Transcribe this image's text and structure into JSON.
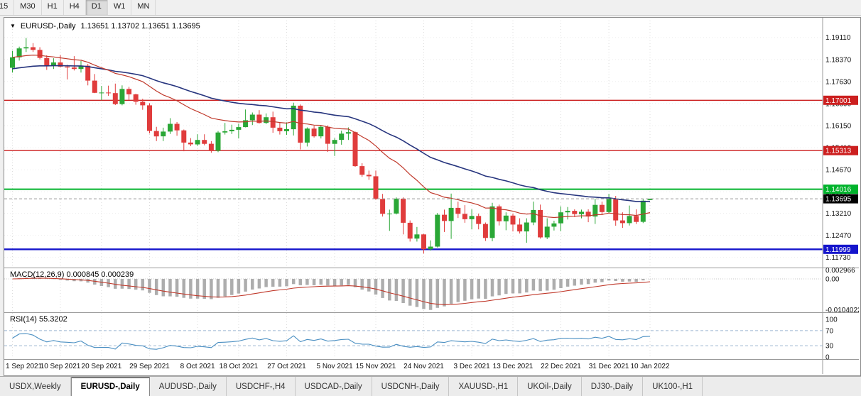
{
  "toolbar": {
    "timeframes": [
      "15",
      "M30",
      "H1",
      "H4",
      "D1",
      "W1",
      "MN"
    ],
    "active": "D1"
  },
  "chart_header": {
    "symbol": "EURUSD-,Daily",
    "ohlc": "1.13651 1.13702 1.13651 1.13695"
  },
  "indicators": {
    "macd": {
      "label": "MACD(12,26,9) 0.000845 0.000239",
      "fast": 12,
      "slow": 26,
      "signal": 9,
      "axis": [
        {
          "v": 0.002966,
          "t": "0.002966"
        },
        {
          "v": 0,
          "t": "0.00"
        },
        {
          "v": -0.0104022,
          "t": "-0.0104022"
        }
      ]
    },
    "rsi": {
      "label": "RSI(14) 55.3202",
      "period": 14,
      "levels": [
        70,
        30
      ],
      "axis": [
        {
          "v": 100,
          "t": "100"
        },
        {
          "v": 70,
          "t": "70"
        },
        {
          "v": 30,
          "t": "30"
        },
        {
          "v": 0,
          "t": "0"
        }
      ]
    },
    "ma": [
      {
        "period": 20,
        "color": "#c0392b",
        "seed_offset": 0
      },
      {
        "period": 45,
        "color": "#27357e",
        "seed_offset": -0.004
      }
    ]
  },
  "chart_data": {
    "type": "candlestick",
    "symbol": "EURUSD",
    "timeframe": "Daily",
    "current_price": "1.13695",
    "price_axis_labels": [
      "1.19110",
      "1.18370",
      "1.17630",
      "1.16890",
      "1.16150",
      "1.15410",
      "1.14670",
      "1.13930",
      "1.13210",
      "1.12470",
      "1.11730"
    ],
    "hlines": [
      {
        "price": 1.17001,
        "label": "1.17001",
        "color": "#cc1f1f",
        "width": 1.4
      },
      {
        "price": 1.15313,
        "label": "1.15313",
        "color": "#cc1f1f",
        "width": 1.4
      },
      {
        "price": 1.14016,
        "label": "1.14016",
        "color": "#00b32c",
        "width": 2
      },
      {
        "price": 1.11999,
        "label": "1.11999",
        "color": "#1515cc",
        "width": 2.4
      }
    ],
    "x_ticks": [
      {
        "label": "1 Sep 2021",
        "i": 0
      },
      {
        "label": "10 Sep 2021",
        "i": 7
      },
      {
        "label": "20 Sep 2021",
        "i": 13
      },
      {
        "label": "29 Sep 2021",
        "i": 20
      },
      {
        "label": "8 Oct 2021",
        "i": 27
      },
      {
        "label": "18 Oct 2021",
        "i": 33
      },
      {
        "label": "27 Oct 2021",
        "i": 40
      },
      {
        "label": "5 Nov 2021",
        "i": 47
      },
      {
        "label": "15 Nov 2021",
        "i": 53
      },
      {
        "label": "24 Nov 2021",
        "i": 60
      },
      {
        "label": "3 Dec 2021",
        "i": 67
      },
      {
        "label": "13 Dec 2021",
        "i": 73
      },
      {
        "label": "22 Dec 2021",
        "i": 80
      },
      {
        "label": "31 Dec 2021",
        "i": 87
      },
      {
        "label": "10 Jan 2022",
        "i": 93
      }
    ],
    "candles": [
      [
        1.1809,
        1.1866,
        1.1793,
        1.1844
      ],
      [
        1.1844,
        1.188,
        1.1833,
        1.1874
      ],
      [
        1.1874,
        1.1909,
        1.1862,
        1.1878
      ],
      [
        1.1878,
        1.1892,
        1.1862,
        1.1869
      ],
      [
        1.1869,
        1.1878,
        1.1837,
        1.1842
      ],
      [
        1.1842,
        1.1851,
        1.1802,
        1.1817
      ],
      [
        1.1817,
        1.1841,
        1.1805,
        1.1827
      ],
      [
        1.1827,
        1.1852,
        1.181,
        1.1813
      ],
      [
        1.1813,
        1.1819,
        1.177,
        1.181
      ],
      [
        1.181,
        1.1848,
        1.18,
        1.1805
      ],
      [
        1.1805,
        1.1832,
        1.1793,
        1.1816
      ],
      [
        1.1816,
        1.1822,
        1.175,
        1.1766
      ],
      [
        1.1766,
        1.1788,
        1.1724,
        1.1725
      ],
      [
        1.1725,
        1.1748,
        1.17,
        1.1726
      ],
      [
        1.1726,
        1.1749,
        1.1715,
        1.1724
      ],
      [
        1.1724,
        1.1756,
        1.1684,
        1.1687
      ],
      [
        1.1687,
        1.175,
        1.1683,
        1.1738
      ],
      [
        1.1738,
        1.1745,
        1.1701,
        1.172
      ],
      [
        1.172,
        1.1722,
        1.1685,
        1.1695
      ],
      [
        1.1695,
        1.1705,
        1.1668,
        1.1683
      ],
      [
        1.1683,
        1.169,
        1.1589,
        1.1597
      ],
      [
        1.1597,
        1.1611,
        1.1563,
        1.1579
      ],
      [
        1.1579,
        1.1608,
        1.1563,
        1.1595
      ],
      [
        1.1595,
        1.164,
        1.1587,
        1.1621
      ],
      [
        1.1621,
        1.1627,
        1.1581,
        1.1599
      ],
      [
        1.1599,
        1.1602,
        1.1529,
        1.1558
      ],
      [
        1.1558,
        1.1573,
        1.1546,
        1.1552
      ],
      [
        1.1552,
        1.1586,
        1.1547,
        1.1567
      ],
      [
        1.1567,
        1.1586,
        1.1549,
        1.1554
      ],
      [
        1.1554,
        1.1563,
        1.1524,
        1.1531
      ],
      [
        1.1531,
        1.1597,
        1.1526,
        1.1592
      ],
      [
        1.1592,
        1.1624,
        1.1585,
        1.1596
      ],
      [
        1.1596,
        1.1618,
        1.1587,
        1.1601
      ],
      [
        1.1601,
        1.1621,
        1.1572,
        1.161
      ],
      [
        1.161,
        1.1669,
        1.1609,
        1.1633
      ],
      [
        1.1633,
        1.1659,
        1.1617,
        1.1652
      ],
      [
        1.1652,
        1.1667,
        1.1622,
        1.1624
      ],
      [
        1.1624,
        1.1656,
        1.162,
        1.1643
      ],
      [
        1.1643,
        1.1662,
        1.1591,
        1.1608
      ],
      [
        1.1608,
        1.1627,
        1.1585,
        1.1596
      ],
      [
        1.1596,
        1.1626,
        1.1584,
        1.1603
      ],
      [
        1.1603,
        1.1692,
        1.1582,
        1.1682
      ],
      [
        1.1682,
        1.1686,
        1.1535,
        1.1558
      ],
      [
        1.1558,
        1.1609,
        1.1545,
        1.1605
      ],
      [
        1.1605,
        1.1614,
        1.1575,
        1.1579
      ],
      [
        1.1579,
        1.1616,
        1.1572,
        1.1611
      ],
      [
        1.1611,
        1.1616,
        1.1527,
        1.1554
      ],
      [
        1.1554,
        1.1573,
        1.1513,
        1.1567
      ],
      [
        1.1567,
        1.1598,
        1.1551,
        1.1588
      ],
      [
        1.1588,
        1.1609,
        1.1567,
        1.1593
      ],
      [
        1.1593,
        1.1595,
        1.1477,
        1.1479
      ],
      [
        1.1479,
        1.1489,
        1.1443,
        1.145
      ],
      [
        1.145,
        1.1464,
        1.1433,
        1.1445
      ],
      [
        1.1445,
        1.1464,
        1.1366,
        1.1369
      ],
      [
        1.1369,
        1.1386,
        1.131,
        1.1319
      ],
      [
        1.1319,
        1.1333,
        1.1262,
        1.132
      ],
      [
        1.132,
        1.1374,
        1.1317,
        1.137
      ],
      [
        1.137,
        1.1374,
        1.125,
        1.1289
      ],
      [
        1.1289,
        1.1297,
        1.1226,
        1.1236
      ],
      [
        1.1236,
        1.1275,
        1.1226,
        1.125
      ],
      [
        1.125,
        1.1252,
        1.1186,
        1.12
      ],
      [
        1.12,
        1.123,
        1.1196,
        1.1209
      ],
      [
        1.1209,
        1.1322,
        1.1206,
        1.1316
      ],
      [
        1.1316,
        1.1333,
        1.1258,
        1.1295
      ],
      [
        1.1295,
        1.1387,
        1.1235,
        1.1339
      ],
      [
        1.1339,
        1.136,
        1.1305,
        1.1319
      ],
      [
        1.1319,
        1.1348,
        1.1289,
        1.1301
      ],
      [
        1.1301,
        1.1334,
        1.1267,
        1.1312
      ],
      [
        1.1312,
        1.132,
        1.1267,
        1.1285
      ],
      [
        1.1285,
        1.129,
        1.1228,
        1.1238
      ],
      [
        1.1238,
        1.1356,
        1.1227,
        1.1344
      ],
      [
        1.1344,
        1.135,
        1.128,
        1.1294
      ],
      [
        1.1294,
        1.1324,
        1.1264,
        1.1313
      ],
      [
        1.1313,
        1.132,
        1.126,
        1.1283
      ],
      [
        1.1283,
        1.1304,
        1.1253,
        1.126
      ],
      [
        1.126,
        1.1304,
        1.1222,
        1.129
      ],
      [
        1.129,
        1.136,
        1.1281,
        1.1332
      ],
      [
        1.1332,
        1.135,
        1.1236,
        1.124
      ],
      [
        1.124,
        1.1304,
        1.1234,
        1.1276
      ],
      [
        1.1276,
        1.1296,
        1.1263,
        1.1287
      ],
      [
        1.1287,
        1.1344,
        1.1261,
        1.1324
      ],
      [
        1.1324,
        1.1342,
        1.13,
        1.1329
      ],
      [
        1.1329,
        1.1334,
        1.1308,
        1.1318
      ],
      [
        1.1318,
        1.1333,
        1.1304,
        1.1326
      ],
      [
        1.1326,
        1.1334,
        1.1291,
        1.131
      ],
      [
        1.131,
        1.137,
        1.1285,
        1.1349
      ],
      [
        1.1349,
        1.136,
        1.1315,
        1.1325
      ],
      [
        1.1325,
        1.1386,
        1.1321,
        1.137
      ],
      [
        1.137,
        1.1379,
        1.1279,
        1.1297
      ],
      [
        1.1297,
        1.1324,
        1.1272,
        1.1288
      ],
      [
        1.1288,
        1.1347,
        1.128,
        1.1312
      ],
      [
        1.1312,
        1.1334,
        1.1285,
        1.1292
      ],
      [
        1.1292,
        1.1368,
        1.1288,
        1.1363
      ],
      [
        1.13651,
        1.13702,
        1.13651,
        1.13695
      ]
    ]
  },
  "tabs": [
    "USDX,Weekly",
    "EURUSD-,Daily",
    "AUDUSD-,Daily",
    "USDCHF-,H4",
    "USDCAD-,Daily",
    "USDCNH-,Daily",
    "XAUUSD-,H1",
    "UKOil-,Daily",
    "DJ30-,Daily",
    "UK100-,H1"
  ],
  "active_tab": "EURUSD-,Daily",
  "colors": {
    "up": "#2aa736",
    "down": "#e03c3c",
    "grid": "#dcdcdc",
    "hgrid": "#ededed",
    "axis_text": "#111111",
    "current_badge": "#000000",
    "macd_bar": "#adadad",
    "macd_signal": "#c0392b",
    "rsi_line": "#4a8fc2",
    "rsi_level": "#9db8d2"
  }
}
